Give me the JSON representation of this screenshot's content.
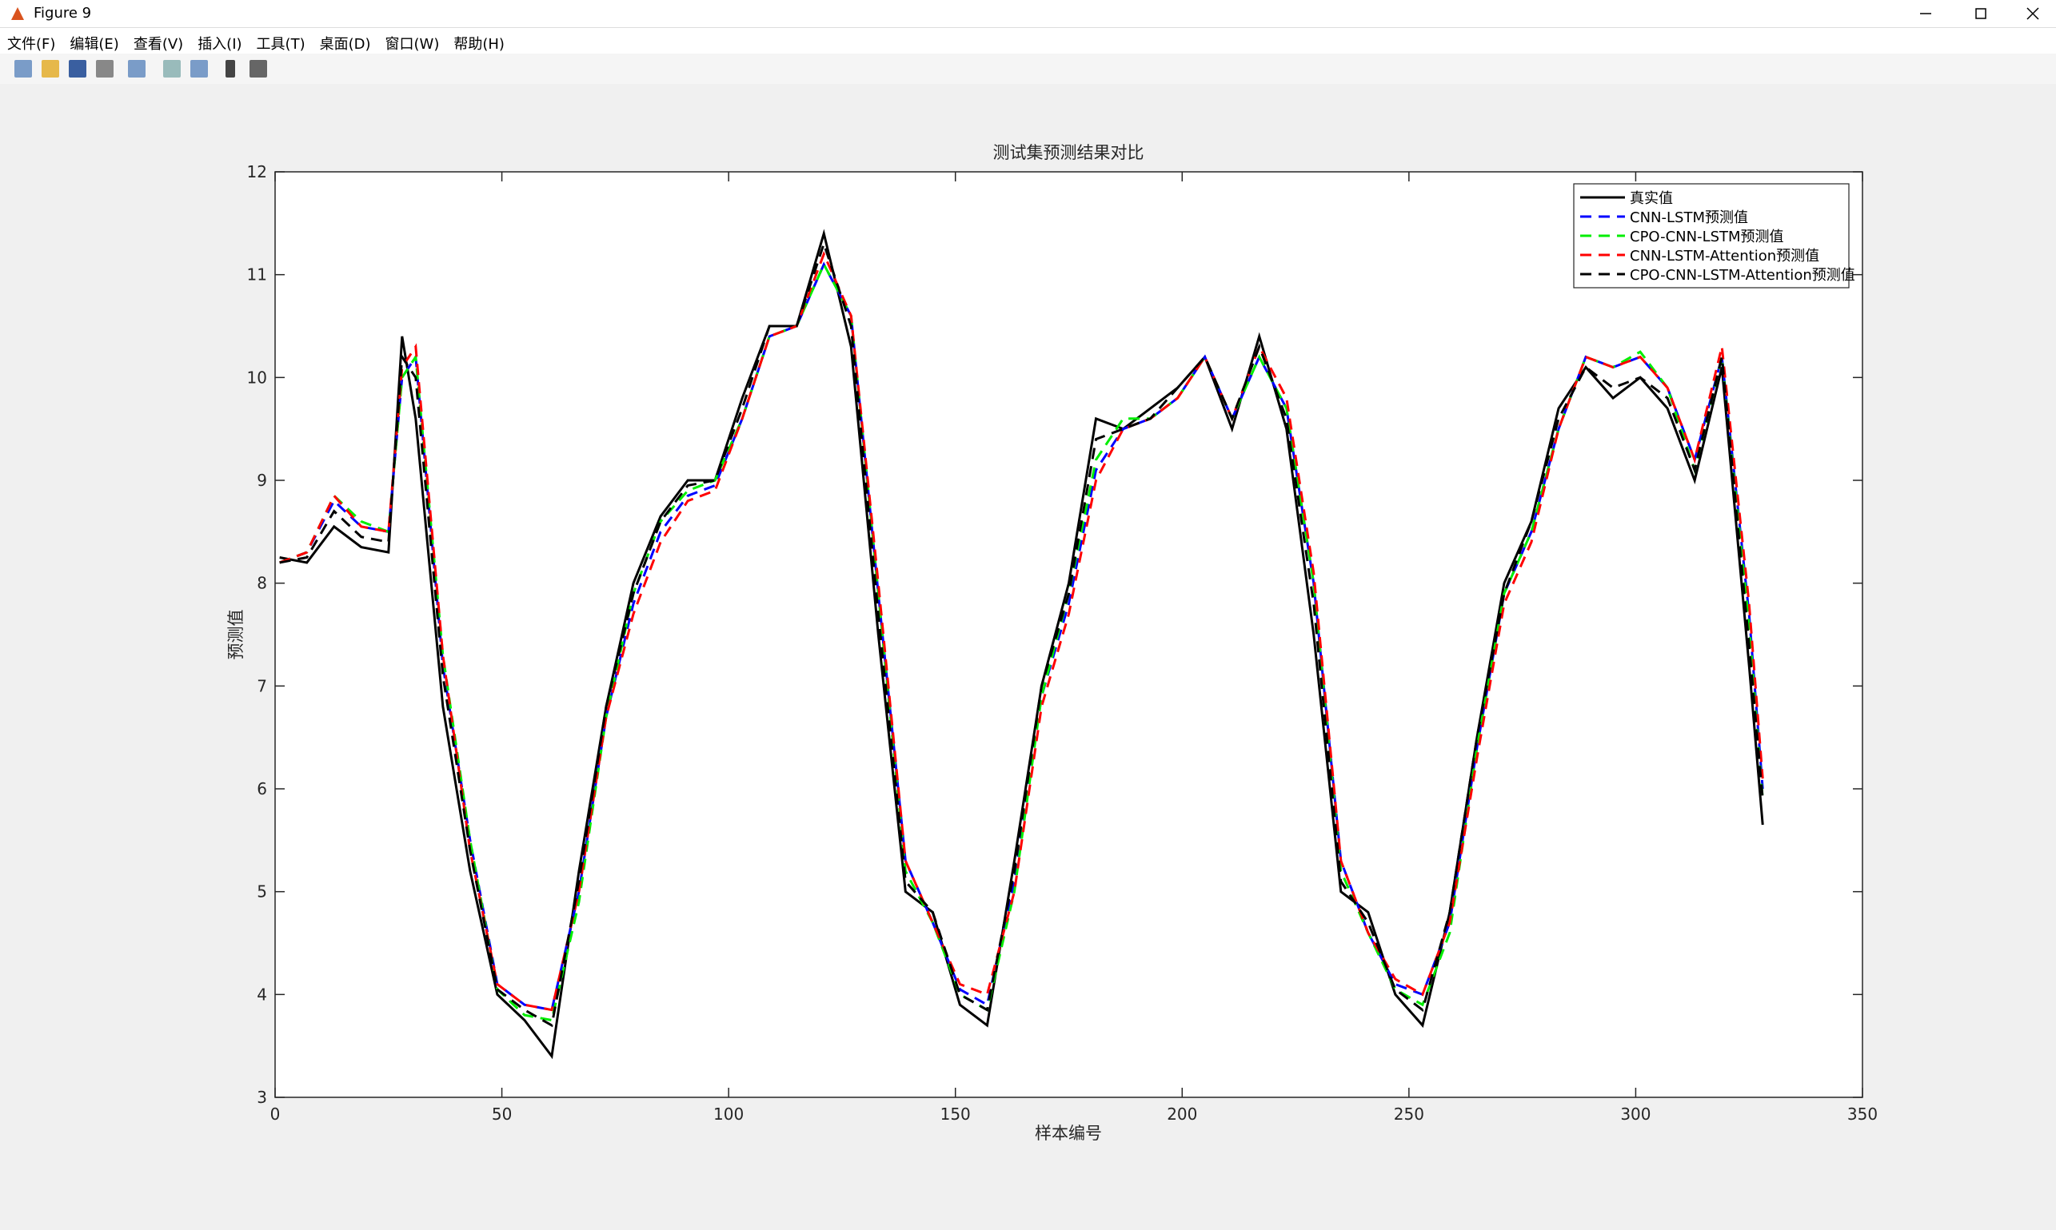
{
  "window": {
    "title": "Figure 9",
    "menu": [
      "文件(F)",
      "编辑(E)",
      "查看(V)",
      "插入(I)",
      "工具(T)",
      "桌面(D)",
      "窗口(W)",
      "帮助(H)"
    ]
  },
  "chart_data": {
    "type": "line",
    "title": "测试集预测结果对比",
    "xlabel": "样本编号",
    "ylabel": "预测值",
    "x": [
      1,
      7,
      13,
      19,
      25,
      28,
      31,
      37,
      43,
      49,
      55,
      61,
      67,
      73,
      79,
      85,
      91,
      97,
      103,
      109,
      115,
      121,
      127,
      133,
      139,
      145,
      151,
      157,
      163,
      169,
      175,
      181,
      187,
      193,
      199,
      205,
      211,
      217,
      223,
      229,
      235,
      241,
      247,
      253,
      259,
      265,
      271,
      277,
      283,
      289,
      295,
      301,
      307,
      313,
      319,
      325,
      328
    ],
    "series": [
      {
        "name": "真实值",
        "color": "#000000",
        "line_style": "solid",
        "values": [
          8.25,
          8.2,
          8.55,
          8.35,
          8.3,
          10.4,
          9.6,
          6.8,
          5.2,
          4.0,
          3.75,
          3.4,
          5.2,
          6.8,
          8.0,
          8.65,
          9.0,
          9.0,
          9.8,
          10.5,
          10.5,
          11.4,
          10.3,
          7.5,
          5.0,
          4.8,
          3.9,
          3.7,
          5.3,
          7.0,
          8.0,
          9.6,
          9.5,
          9.7,
          9.9,
          10.2,
          9.5,
          10.4,
          9.5,
          7.5,
          5.0,
          4.8,
          4.0,
          3.7,
          4.8,
          6.5,
          8.0,
          8.6,
          9.7,
          10.1,
          9.8,
          10.0,
          9.7,
          9.0,
          10.1,
          7.2,
          5.65
        ]
      },
      {
        "name": "CNN-LSTM预测值",
        "color": "#0000ff",
        "line_style": "dashed",
        "values": [
          8.2,
          8.3,
          8.8,
          8.55,
          8.5,
          10.0,
          10.2,
          7.2,
          5.5,
          4.1,
          3.9,
          3.85,
          5.0,
          6.7,
          7.8,
          8.5,
          8.85,
          8.95,
          9.6,
          10.4,
          10.5,
          11.1,
          10.6,
          7.9,
          5.3,
          4.7,
          4.05,
          3.9,
          5.1,
          6.9,
          7.8,
          9.1,
          9.5,
          9.6,
          9.8,
          10.2,
          9.6,
          10.2,
          9.7,
          8.0,
          5.3,
          4.6,
          4.1,
          4.0,
          4.7,
          6.4,
          7.9,
          8.5,
          9.5,
          10.2,
          10.1,
          10.2,
          9.9,
          9.2,
          10.2,
          7.7,
          6.0
        ]
      },
      {
        "name": "CPO-CNN-LSTM预测值",
        "color": "#00ee00",
        "line_style": "dashed",
        "values": [
          8.2,
          8.3,
          8.85,
          8.6,
          8.5,
          10.0,
          10.2,
          7.3,
          5.5,
          4.05,
          3.8,
          3.75,
          4.9,
          6.7,
          7.9,
          8.6,
          8.9,
          9.0,
          9.6,
          10.4,
          10.5,
          11.1,
          10.6,
          7.9,
          5.2,
          4.7,
          4.0,
          3.85,
          5.0,
          6.9,
          7.9,
          9.2,
          9.6,
          9.6,
          9.8,
          10.2,
          9.6,
          10.2,
          9.7,
          8.0,
          5.2,
          4.6,
          4.05,
          3.9,
          4.6,
          6.4,
          7.9,
          8.5,
          9.5,
          10.2,
          10.1,
          10.25,
          9.9,
          9.1,
          10.2,
          7.6,
          5.9
        ]
      },
      {
        "name": "CNN-LSTM-Attention预测值",
        "color": "#ff0000",
        "line_style": "dashed",
        "values": [
          8.2,
          8.3,
          8.85,
          8.55,
          8.5,
          10.1,
          10.3,
          7.3,
          5.4,
          4.1,
          3.9,
          3.85,
          5.0,
          6.7,
          7.7,
          8.4,
          8.8,
          8.9,
          9.6,
          10.4,
          10.5,
          11.2,
          10.6,
          8.0,
          5.3,
          4.7,
          4.1,
          4.0,
          5.0,
          6.8,
          7.7,
          9.0,
          9.5,
          9.6,
          9.8,
          10.2,
          9.6,
          10.3,
          9.8,
          8.1,
          5.3,
          4.6,
          4.15,
          4.0,
          4.7,
          6.3,
          7.8,
          8.4,
          9.5,
          10.2,
          10.1,
          10.2,
          9.9,
          9.2,
          10.3,
          7.8,
          6.1
        ]
      },
      {
        "name": "CPO-CNN-LSTM-Attention预测值",
        "color": "#000000",
        "line_style": "dashed",
        "values": [
          8.2,
          8.25,
          8.7,
          8.45,
          8.4,
          10.2,
          10.0,
          7.1,
          5.4,
          4.05,
          3.85,
          3.7,
          5.1,
          6.8,
          7.9,
          8.6,
          8.95,
          9.0,
          9.7,
          10.5,
          10.5,
          11.3,
          10.5,
          7.7,
          5.1,
          4.8,
          4.0,
          3.85,
          5.2,
          7.0,
          7.9,
          9.4,
          9.5,
          9.6,
          9.9,
          10.2,
          9.6,
          10.3,
          9.6,
          7.8,
          5.1,
          4.7,
          4.05,
          3.85,
          4.8,
          6.5,
          7.9,
          8.6,
          9.6,
          10.1,
          9.9,
          10.0,
          9.8,
          9.1,
          10.2,
          7.4,
          5.9
        ]
      }
    ],
    "xlim": [
      0,
      350
    ],
    "xticks": [
      0,
      50,
      100,
      150,
      200,
      250,
      300,
      350
    ],
    "ylim": [
      3,
      12
    ],
    "yticks": [
      3,
      4,
      5,
      6,
      7,
      8,
      9,
      10,
      11,
      12
    ],
    "legend": "upper right"
  }
}
